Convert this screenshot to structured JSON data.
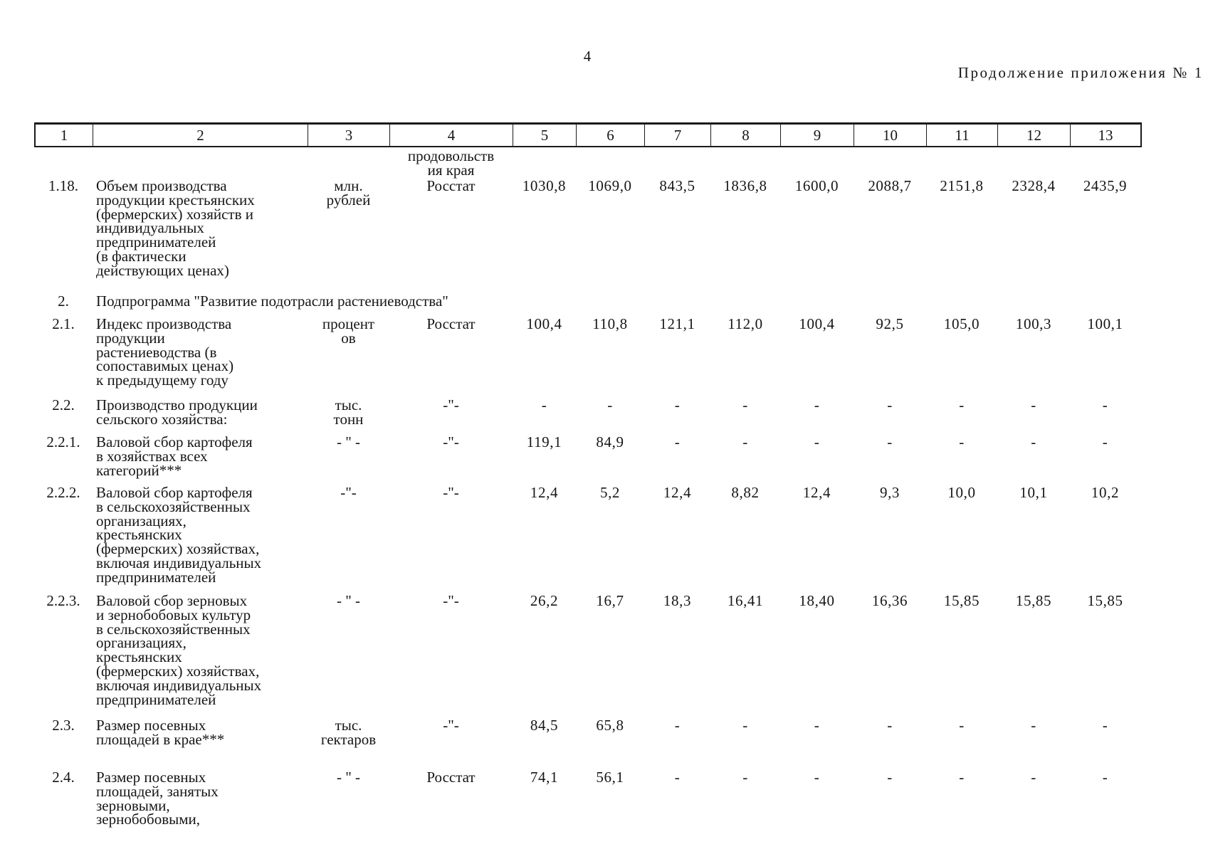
{
  "page": {
    "number": "4",
    "continuation_label": "Продолжение приложения № 1"
  },
  "table": {
    "column_numbers": [
      "1",
      "2",
      "3",
      "4",
      "5",
      "6",
      "7",
      "8",
      "9",
      "10",
      "11",
      "12",
      "13"
    ],
    "header_carryover": "продовольств\nия края",
    "rows": [
      {
        "num": "1.18.",
        "name": "Объем производства\nпродукции крестьянских\n(фермерских) хозяйств и\nиндивидуальных\nпредпринимателей\n(в фактически\nдействующих ценах)",
        "unit": "млн.\nрублей",
        "source": "Росстат",
        "values": [
          "1030,8",
          "1069,0",
          "843,5",
          "1836,8",
          "1600,0",
          "2088,7",
          "2151,8",
          "2328,4",
          "2435,9"
        ]
      },
      {
        "num": "2.",
        "section_title": "Подпрограмма \"Развитие подотрасли растениеводства\""
      },
      {
        "num": "2.1.",
        "name": "Индекс производства\nпродукции\nрастениеводства (в\nсопоставимых ценах)\nк предыдущему году",
        "unit": "процент\nов",
        "source": "Росстат",
        "values": [
          "100,4",
          "110,8",
          "121,1",
          "112,0",
          "100,4",
          "92,5",
          "105,0",
          "100,3",
          "100,1"
        ]
      },
      {
        "num": "2.2.",
        "name": "Производство продукции\nсельского хозяйства:",
        "unit": "тыс.\nтонн",
        "source": "-\"-",
        "values": [
          "-",
          "-",
          "-",
          "-",
          "-",
          "-",
          "-",
          "-",
          "-"
        ]
      },
      {
        "num": "2.2.1.",
        "name": "Валовой сбор картофеля\nв хозяйствах всех\nкатегорий***",
        "unit": "- \" -",
        "source": "-\"-",
        "values": [
          "119,1",
          "84,9",
          "-",
          "-",
          "-",
          "-",
          "-",
          "-",
          "-"
        ]
      },
      {
        "num": "2.2.2.",
        "name": "Валовой сбор картофеля\nв сельскохозяйственных\nорганизациях,\nкрестьянских\n(фермерских) хозяйствах,\nвключая индивидуальных\nпредпринимателей",
        "unit": "-\"-",
        "source": "-\"-",
        "values": [
          "12,4",
          "5,2",
          "12,4",
          "8,82",
          "12,4",
          "9,3",
          "10,0",
          "10,1",
          "10,2"
        ]
      },
      {
        "num": "2.2.3.",
        "name": "Валовой сбор зерновых\nи зернобобовых культур\nв сельскохозяйственных\nорганизациях,\nкрестьянских\n(фермерских) хозяйствах,\nвключая индивидуальных\nпредпринимателей",
        "unit": "- \" -",
        "source": "-\"-",
        "values": [
          "26,2",
          "16,7",
          "18,3",
          "16,41",
          "18,40",
          "16,36",
          "15,85",
          "15,85",
          "15,85"
        ]
      },
      {
        "num": "2.3.",
        "name": "Размер посевных\nплощадей в крае***",
        "unit": "тыс.\nгектаров",
        "source": "-\"-",
        "values": [
          "84,5",
          "65,8",
          "-",
          "-",
          "-",
          "-",
          "-",
          "-",
          "-"
        ]
      },
      {
        "num": "2.4.",
        "name": "Размер посевных\nплощадей, занятых\nзерновыми,\nзернобобовыми,",
        "unit": "- \" -",
        "source": "Росстат",
        "values": [
          "74,1",
          "56,1",
          "-",
          "-",
          "-",
          "-",
          "-",
          "-",
          "-"
        ]
      }
    ]
  }
}
